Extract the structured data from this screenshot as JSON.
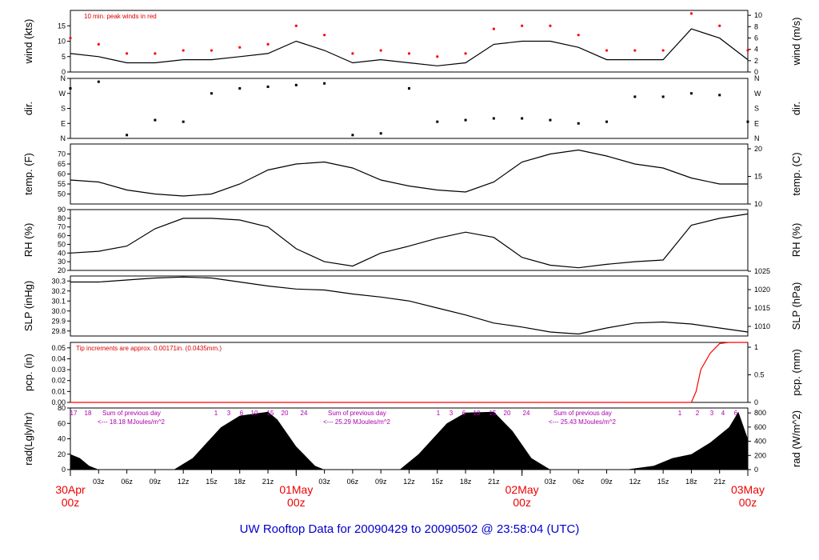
{
  "title": "UW Rooftop Data for 20090429  to  20090502 @ 23:58:04  (UTC)",
  "x_hour_labels": [
    "03z",
    "06z",
    "09z",
    "12z",
    "15z",
    "18z",
    "21z",
    "00z",
    "03z",
    "06z",
    "09z",
    "12z",
    "15z",
    "18z",
    "21z",
    "00z",
    "03z",
    "06z",
    "09z",
    "12z",
    "15z",
    "18z",
    "21z"
  ],
  "x_day_labels": [
    {
      "date": "30Apr",
      "time": "00z"
    },
    {
      "date": "01May",
      "time": "00z"
    },
    {
      "date": "02May",
      "time": "00z"
    },
    {
      "date": "03May",
      "time": "00z"
    }
  ],
  "colors": {
    "data": "#000000",
    "peak": "#ff0000",
    "note": "#dd0000",
    "rad_label": "#aa00aa",
    "title": "#0000cc",
    "date": "#ee0000"
  },
  "chart_data": [
    {
      "type": "line",
      "id": "wind",
      "ylabel": "wind (kts)",
      "ylabel_right": "wind (m/s)",
      "ylim": [
        0,
        20
      ],
      "yticks": [
        "0",
        "5",
        "10",
        "15"
      ],
      "yticks_right": [
        "0",
        "2",
        "4",
        "6",
        "8",
        "10"
      ],
      "note": "10 min. peak winds in red",
      "x_hours": [
        0,
        3,
        6,
        9,
        12,
        15,
        18,
        21,
        24,
        27,
        30,
        33,
        36,
        39,
        42,
        45,
        48,
        51,
        54,
        57,
        60,
        63,
        66,
        69,
        72
      ],
      "values": [
        6,
        5,
        3,
        3,
        4,
        4,
        5,
        6,
        10,
        7,
        3,
        4,
        3,
        2,
        3,
        9,
        10,
        10,
        8,
        4,
        4,
        4,
        14,
        11,
        4
      ],
      "peak_values": [
        11,
        9,
        6,
        6,
        7,
        7,
        8,
        9,
        15,
        12,
        6,
        7,
        6,
        5,
        6,
        14,
        15,
        15,
        12,
        7,
        7,
        7,
        19,
        15,
        7
      ]
    },
    {
      "type": "scatter",
      "id": "dir",
      "ylabel": "dir.",
      "ylabel_right": "dir.",
      "ylim": [
        0,
        360
      ],
      "yticks": [
        "N",
        "E",
        "S",
        "W",
        "N"
      ],
      "x_hours": [
        0,
        3,
        6,
        9,
        12,
        15,
        18,
        21,
        24,
        27,
        30,
        33,
        36,
        39,
        42,
        45,
        48,
        51,
        54,
        57,
        60,
        63,
        66,
        69,
        72
      ],
      "values": [
        300,
        340,
        20,
        110,
        100,
        270,
        300,
        310,
        320,
        330,
        20,
        30,
        300,
        100,
        110,
        120,
        120,
        110,
        90,
        100,
        250,
        250,
        270,
        260,
        100
      ]
    },
    {
      "type": "line",
      "id": "temp",
      "ylabel": "temp. (F)",
      "ylabel_right": "temp. (C)",
      "ylim": [
        45,
        75
      ],
      "yticks": [
        "50",
        "55",
        "60",
        "65",
        "70"
      ],
      "yticks_right": [
        "10",
        "15",
        "20"
      ],
      "x_hours": [
        0,
        3,
        6,
        9,
        12,
        15,
        18,
        21,
        24,
        27,
        30,
        33,
        36,
        39,
        42,
        45,
        48,
        51,
        54,
        57,
        60,
        63,
        66,
        69,
        72
      ],
      "values": [
        57,
        56,
        52,
        50,
        49,
        50,
        55,
        62,
        65,
        66,
        63,
        57,
        54,
        52,
        51,
        56,
        66,
        70,
        72,
        69,
        65,
        63,
        58,
        55,
        55
      ]
    },
    {
      "type": "line",
      "id": "rh",
      "ylabel": "RH (%)",
      "ylabel_right": "RH (%)",
      "ylim": [
        20,
        90
      ],
      "yticks": [
        "20",
        "30",
        "40",
        "50",
        "60",
        "70",
        "80",
        "90"
      ],
      "x_hours": [
        0,
        3,
        6,
        9,
        12,
        15,
        18,
        21,
        24,
        27,
        30,
        33,
        36,
        39,
        42,
        45,
        48,
        51,
        54,
        57,
        60,
        63,
        66,
        69,
        72
      ],
      "values": [
        40,
        42,
        48,
        68,
        80,
        80,
        78,
        70,
        45,
        30,
        25,
        40,
        48,
        57,
        64,
        58,
        35,
        26,
        23,
        27,
        30,
        32,
        72,
        80,
        85
      ]
    },
    {
      "type": "line",
      "id": "slp",
      "ylabel": "SLP (inHg)",
      "ylabel_right": "SLP (hPa)",
      "ylim": [
        29.75,
        30.35
      ],
      "yticks": [
        "29.8",
        "29.9",
        "30.0",
        "30.1",
        "30.2",
        "30.3"
      ],
      "yticks_right": [
        "1010",
        "1015",
        "1020",
        "1025"
      ],
      "x_hours": [
        0,
        3,
        6,
        9,
        12,
        15,
        18,
        21,
        24,
        27,
        30,
        33,
        36,
        39,
        42,
        45,
        48,
        51,
        54,
        57,
        60,
        63,
        66,
        69,
        72
      ],
      "values": [
        30.29,
        30.29,
        30.31,
        30.33,
        30.34,
        30.33,
        30.29,
        30.25,
        30.22,
        30.21,
        30.17,
        30.14,
        30.1,
        30.03,
        29.96,
        29.88,
        29.84,
        29.79,
        29.77,
        29.83,
        29.88,
        29.89,
        29.87,
        29.83,
        29.79
      ]
    },
    {
      "type": "area",
      "id": "pcp",
      "ylabel": "pcp. (in)",
      "ylabel_right": "pcp. (mm)",
      "ylim": [
        0,
        0.055
      ],
      "yticks": [
        "0.00",
        "0.01",
        "0.02",
        "0.03",
        "0.04",
        "0.05"
      ],
      "yticks_right": [
        "0",
        "0.5",
        "1"
      ],
      "note": "Tip increments are approx. 0.00171in. (0.0435mm.)",
      "x_hours": [
        0,
        66,
        66.5,
        67,
        68,
        69,
        70,
        72
      ],
      "values": [
        0,
        0,
        0.01,
        0.03,
        0.045,
        0.054,
        0.055,
        0.055
      ]
    },
    {
      "type": "area",
      "id": "rad",
      "ylabel": "rad(Lgly/hr)",
      "ylabel_right": "rad (W/m^2)",
      "ylim": [
        0,
        80
      ],
      "yticks": [
        "0",
        "20",
        "40",
        "60",
        "80"
      ],
      "yticks_right": [
        "0",
        "200",
        "400",
        "600",
        "800"
      ],
      "hour_labels": [
        "17",
        "18",
        "1",
        "3",
        "6",
        "10",
        "15",
        "20",
        "24",
        "1",
        "3",
        "6",
        "10",
        "15",
        "20",
        "24",
        "1",
        "2",
        "3",
        "4",
        "6"
      ],
      "daily_sums": [
        {
          "label": "Sum of previous day",
          "value": "<--- 18.18 MJoules/m^2"
        },
        {
          "label": "Sum of previous day",
          "value": "<--- 25.29 MJoules/m^2"
        },
        {
          "label": "Sum of previous day",
          "value": "<--- 25.43 MJoules/m^2"
        }
      ],
      "x_hours": [
        0,
        1,
        2,
        3,
        11,
        13,
        16,
        18,
        21,
        22,
        24,
        26,
        27,
        35,
        37,
        40,
        42,
        45,
        47,
        49,
        51,
        59,
        62,
        64,
        66,
        68,
        70,
        71,
        72
      ],
      "values": [
        20,
        15,
        5,
        0,
        0,
        15,
        55,
        70,
        75,
        65,
        30,
        5,
        0,
        0,
        20,
        60,
        74,
        75,
        50,
        15,
        0,
        0,
        5,
        15,
        20,
        35,
        55,
        75,
        40
      ]
    }
  ]
}
